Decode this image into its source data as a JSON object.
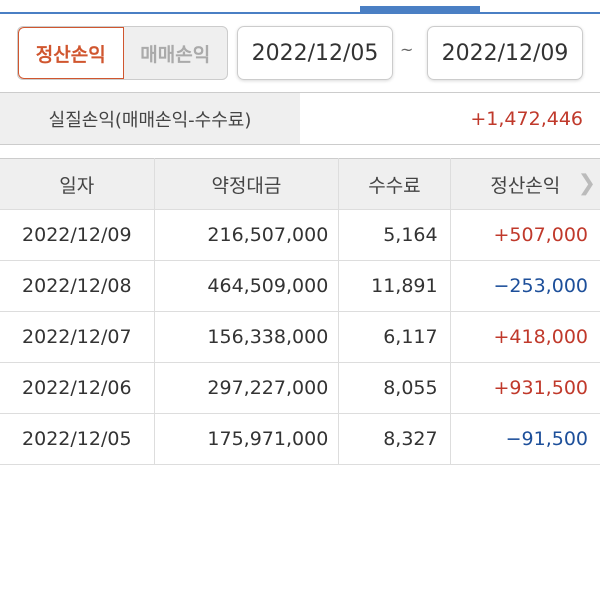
{
  "colors": {
    "accent": "#d0562f",
    "positive": "#c0392b",
    "negative": "#1d4f9a",
    "tab_line": "#4a7fc4"
  },
  "toggle": {
    "options": [
      "정산손익",
      "매매손익"
    ],
    "selected": "정산손익"
  },
  "date_range": {
    "from": "2022/12/05",
    "separator": "~",
    "to": "2022/12/09"
  },
  "summary": {
    "label": "실질손익(매매손익-수수료)",
    "value": "+1,472,446"
  },
  "table": {
    "headers": [
      "일자",
      "약정대금",
      "수수료",
      "정산손익"
    ],
    "more_icon": "chevron-right-icon",
    "rows": [
      {
        "date": "2022/12/09",
        "amount": "216,507,000",
        "fee": "5,164",
        "pnl": "+507,000",
        "sign": "pos"
      },
      {
        "date": "2022/12/08",
        "amount": "464,509,000",
        "fee": "11,891",
        "pnl": "−253,000",
        "sign": "neg"
      },
      {
        "date": "2022/12/07",
        "amount": "156,338,000",
        "fee": "6,117",
        "pnl": "+418,000",
        "sign": "pos"
      },
      {
        "date": "2022/12/06",
        "amount": "297,227,000",
        "fee": "8,055",
        "pnl": "+931,500",
        "sign": "pos"
      },
      {
        "date": "2022/12/05",
        "amount": "175,971,000",
        "fee": "8,327",
        "pnl": "−91,500",
        "sign": "neg"
      }
    ]
  }
}
